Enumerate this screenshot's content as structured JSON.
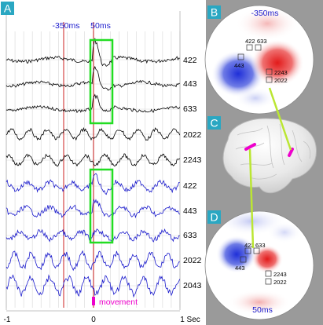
{
  "panels": {
    "A": {
      "label": "A",
      "time_markers": [
        "-350ms",
        "50ms"
      ],
      "black_trace_labels": [
        "422",
        "443",
        "633",
        "2022",
        "2243"
      ],
      "blue_trace_labels": [
        "422",
        "443",
        "633",
        "2022",
        "2043"
      ],
      "movement_label": "movement",
      "x_axis": {
        "ticks": [
          "-1",
          "0",
          "1 Sec"
        ]
      }
    },
    "B": {
      "label": "B",
      "time_label": "-350ms",
      "sensor_labels": [
        "422",
        "633",
        "443",
        "2243",
        "2022"
      ]
    },
    "C": {
      "label": "C"
    },
    "D": {
      "label": "D",
      "time_label": "50ms",
      "sensor_labels": [
        "422",
        "633",
        "443",
        "2243",
        "2022"
      ]
    }
  },
  "colors": {
    "black_trace": "#000000",
    "blue_trace": "#1a1acc",
    "marker_line": "#cc2222",
    "highlight_box": "#22dd22",
    "movement": "#ee00cc",
    "panel_label_bg": "#2aa7c2",
    "time_label": "#1a1acc",
    "right_panel_bg": "#9a9a9a",
    "connector": "#bbe633"
  }
}
